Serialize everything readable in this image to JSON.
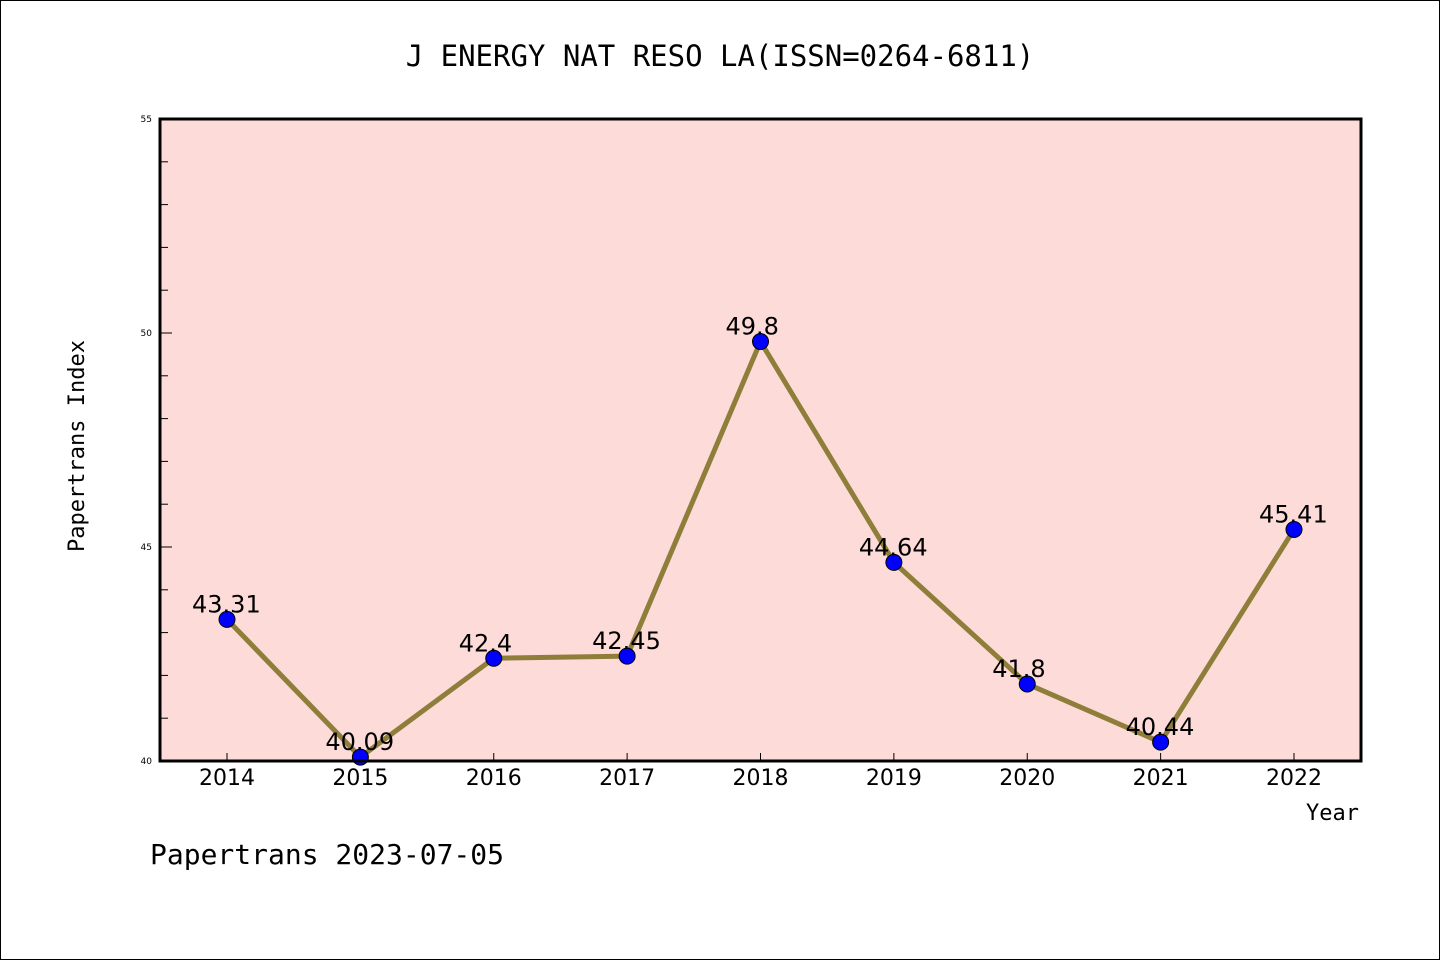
{
  "chart_data": {
    "type": "line",
    "title": "J ENERGY NAT RESO LA(ISSN=0264-6811)",
    "xlabel": "Year",
    "ylabel": "Papertrans Index",
    "categories": [
      "2014",
      "2015",
      "2016",
      "2017",
      "2018",
      "2019",
      "2020",
      "2021",
      "2022"
    ],
    "x": [
      2014,
      2015,
      2016,
      2017,
      2018,
      2019,
      2020,
      2021,
      2022
    ],
    "values": [
      43.31,
      40.09,
      42.4,
      42.45,
      49.8,
      44.64,
      41.8,
      40.44,
      45.41
    ],
    "data_labels": [
      "43.31",
      "40.09",
      "42.4",
      "42.45",
      "49.8",
      "44.64",
      "41.8",
      "40.44",
      "45.41"
    ],
    "ylim": [
      40,
      55
    ],
    "y_ticks": [
      "40",
      "45",
      "50",
      "55"
    ],
    "y_tick_values": [
      40,
      45,
      50,
      55
    ],
    "y_minor_step": 1,
    "grid": false,
    "legend": "none",
    "colors": {
      "plot_background": "#fddbd8",
      "line": "#8f7d3a",
      "marker": "#0000ff",
      "marker_edge": "#000000",
      "axes": "#000000"
    }
  },
  "footer": "Papertrans 2023-07-05"
}
